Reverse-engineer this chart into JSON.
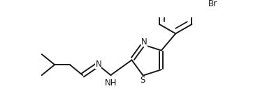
{
  "bg_color": "#ffffff",
  "bond_color": "#1a1a1a",
  "text_color": "#1a1a1a",
  "line_width": 1.4,
  "font_size": 8.5,
  "figsize": [
    3.92,
    1.54
  ],
  "dpi": 100,
  "xlim": [
    0,
    392
  ],
  "ylim": [
    0,
    154
  ]
}
